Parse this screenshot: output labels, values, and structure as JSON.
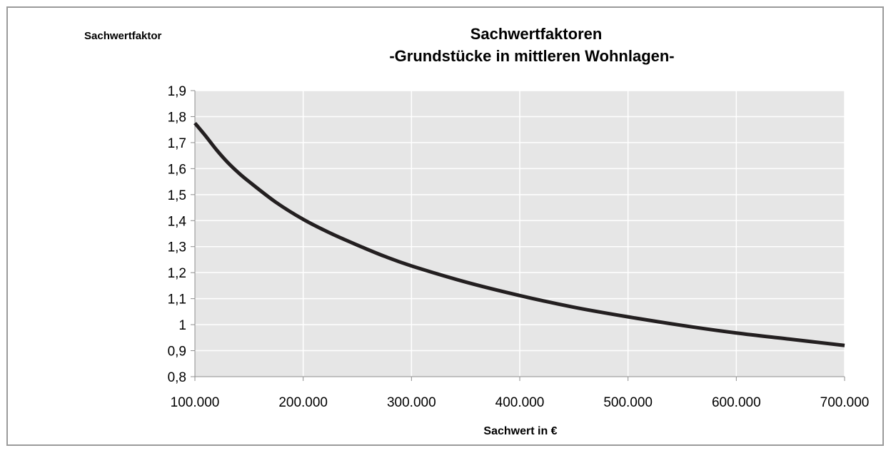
{
  "chart_data": {
    "type": "line",
    "title": [
      "Sachwertfaktoren",
      "-Grundstücke in mittleren Wohnlagen-"
    ],
    "xlabel": "Sachwert in €",
    "ylabel": "Sachwertfaktor",
    "xlim": [
      100000,
      700000
    ],
    "ylim": [
      0.8,
      1.9
    ],
    "x_ticks": [
      100000,
      200000,
      300000,
      400000,
      500000,
      600000,
      700000
    ],
    "x_tick_labels": [
      "100.000",
      "200.000",
      "300.000",
      "400.000",
      "500.000",
      "600.000",
      "700.000"
    ],
    "y_ticks": [
      0.8,
      0.9,
      1.0,
      1.1,
      1.2,
      1.3,
      1.4,
      1.5,
      1.6,
      1.7,
      1.8,
      1.9
    ],
    "y_tick_labels": [
      "0,8",
      "0,9",
      "1",
      "1,1",
      "1,2",
      "1,3",
      "1,4",
      "1,5",
      "1,6",
      "1,7",
      "1,8",
      "1,9"
    ],
    "grid": true,
    "colors": {
      "plot_background": "#e6e6e6",
      "grid": "#ffffff",
      "line": "#231f20",
      "axis": "#8c8c8c"
    },
    "series": [
      {
        "x": [
          100000,
          110000,
          120000,
          130000,
          140000,
          150000,
          175000,
          200000,
          225000,
          250000,
          275000,
          300000,
          350000,
          400000,
          450000,
          500000,
          550000,
          600000,
          650000,
          700000
        ],
        "values": [
          1.775,
          1.725,
          1.672,
          1.625,
          1.585,
          1.55,
          1.47,
          1.405,
          1.352,
          1.306,
          1.263,
          1.226,
          1.164,
          1.112,
          1.067,
          1.03,
          0.997,
          0.968,
          0.944,
          0.92
        ]
      }
    ]
  }
}
